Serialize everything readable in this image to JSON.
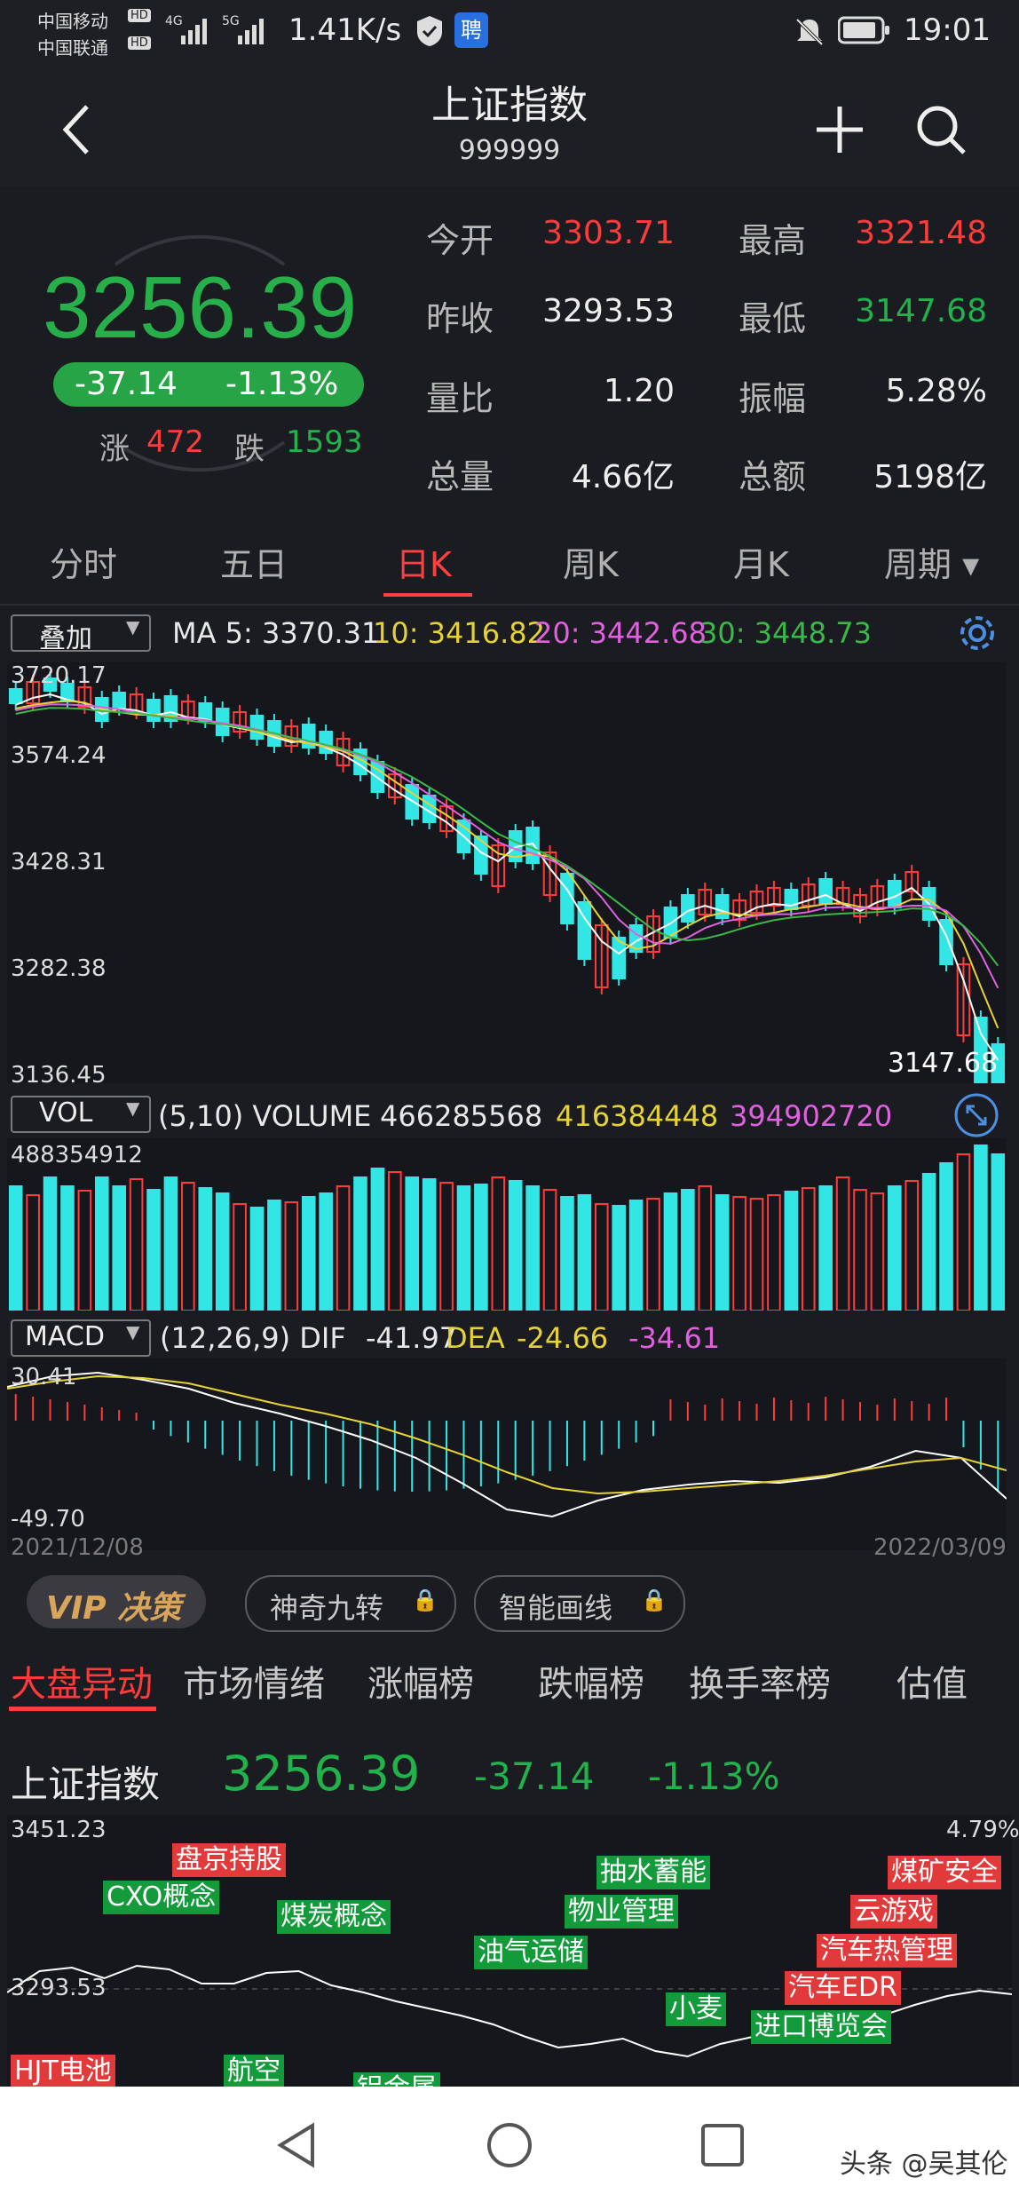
{
  "status_bar": {
    "carrier1": "中国移动",
    "carrier2": "中国联通",
    "hd": "HD",
    "net1": "4G",
    "net2": "5G",
    "speed": "1.41K/s",
    "time": "19:01"
  },
  "header": {
    "title": "上证指数",
    "code": "999999"
  },
  "quote": {
    "price": "3256.39",
    "change": "-37.14",
    "change_pct": "-1.13%",
    "up_label": "涨",
    "up_count": "472",
    "down_label": "跌",
    "down_count": "1593",
    "fields": [
      {
        "label": "今开",
        "value": "3303.71",
        "color": "red"
      },
      {
        "label": "最高",
        "value": "3321.48",
        "color": "red"
      },
      {
        "label": "昨收",
        "value": "3293.53",
        "color": "white"
      },
      {
        "label": "最低",
        "value": "3147.68",
        "color": "green"
      },
      {
        "label": "量比",
        "value": "1.20",
        "color": "white"
      },
      {
        "label": "振幅",
        "value": "5.28%",
        "color": "white"
      },
      {
        "label": "总量",
        "value": "4.66亿",
        "color": "white"
      },
      {
        "label": "总额",
        "value": "5198亿",
        "color": "white"
      }
    ]
  },
  "period_tabs": [
    "分时",
    "五日",
    "日K",
    "周K",
    "月K",
    "周期"
  ],
  "active_period": "日K",
  "ma_bar": {
    "overlay": "叠加",
    "ma5": "MA 5: 3370.31",
    "ma10": "10: 3416.82",
    "ma20": "20: 3442.68",
    "ma30": "30: 3448.73"
  },
  "kline": {
    "y_labels": [
      "3720.17",
      "3574.24",
      "3428.31",
      "3282.38",
      "3136.45"
    ],
    "low_marker": "3147.68"
  },
  "volume": {
    "selector": "VOL",
    "params": "(5,10) VOLUME",
    "value": "466285568",
    "ma5": "416384448",
    "ma10": "394902720",
    "y_label": "488354912"
  },
  "macd": {
    "selector": "MACD",
    "params": "(12,26,9) DIF",
    "dif": "-41.97",
    "dea_label": "DEA",
    "dea": "-24.66",
    "macd": "-34.61",
    "y_top": "30.41",
    "y_bottom": "-49.70",
    "date_start": "2021/12/08",
    "date_end": "2022/03/09"
  },
  "feature_buttons": {
    "vip": "VIP 决策",
    "magic9": "神奇九转",
    "smartline": "智能画线"
  },
  "bottom_tabs": [
    "大盘异动",
    "市场情绪",
    "涨幅榜",
    "跌幅榜",
    "换手率榜",
    "估值"
  ],
  "active_bottom_tab": "大盘异动",
  "intraday": {
    "name": "上证指数",
    "price": "3256.39",
    "change": "-37.14",
    "change_pct": "-1.13%",
    "y_top": "3451.23",
    "y_mid": "3293.53",
    "pct_top": "4.79%",
    "events": [
      {
        "text": "盘京持股",
        "color": "r"
      },
      {
        "text": "CXO概念",
        "color": "g"
      },
      {
        "text": "煤炭概念",
        "color": "g"
      },
      {
        "text": "HJT电池",
        "color": "r"
      },
      {
        "text": "航空",
        "color": "g"
      },
      {
        "text": "铝金属",
        "color": "g"
      },
      {
        "text": "油气运储",
        "color": "g"
      },
      {
        "text": "物业管理",
        "color": "g"
      },
      {
        "text": "抽水蓄能",
        "color": "g"
      },
      {
        "text": "小麦",
        "color": "g"
      },
      {
        "text": "进口博览会",
        "color": "g"
      },
      {
        "text": "汽车EDR",
        "color": "r"
      },
      {
        "text": "汽车热管理",
        "color": "r"
      },
      {
        "text": "云游戏",
        "color": "r"
      },
      {
        "text": "煤矿安全",
        "color": "r"
      }
    ]
  },
  "watermark": "头条 @吴其伦",
  "colors": {
    "up": "#ff3b3b",
    "down": "#22b24c",
    "cyan": "#33e6e6",
    "bg": "#1a1c22"
  }
}
